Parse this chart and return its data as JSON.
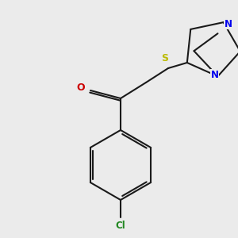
{
  "bg_color": "#ebebeb",
  "bond_color": "#1a1a1a",
  "bond_lw": 1.5,
  "dbo": 0.018,
  "N_color": "#0000ee",
  "O_color": "#cc0000",
  "S_color": "#bbbb00",
  "Cl_color": "#228822",
  "font_size": 8.0,
  "xlim": [
    0.0,
    3.0
  ],
  "ylim": [
    0.0,
    3.0
  ]
}
